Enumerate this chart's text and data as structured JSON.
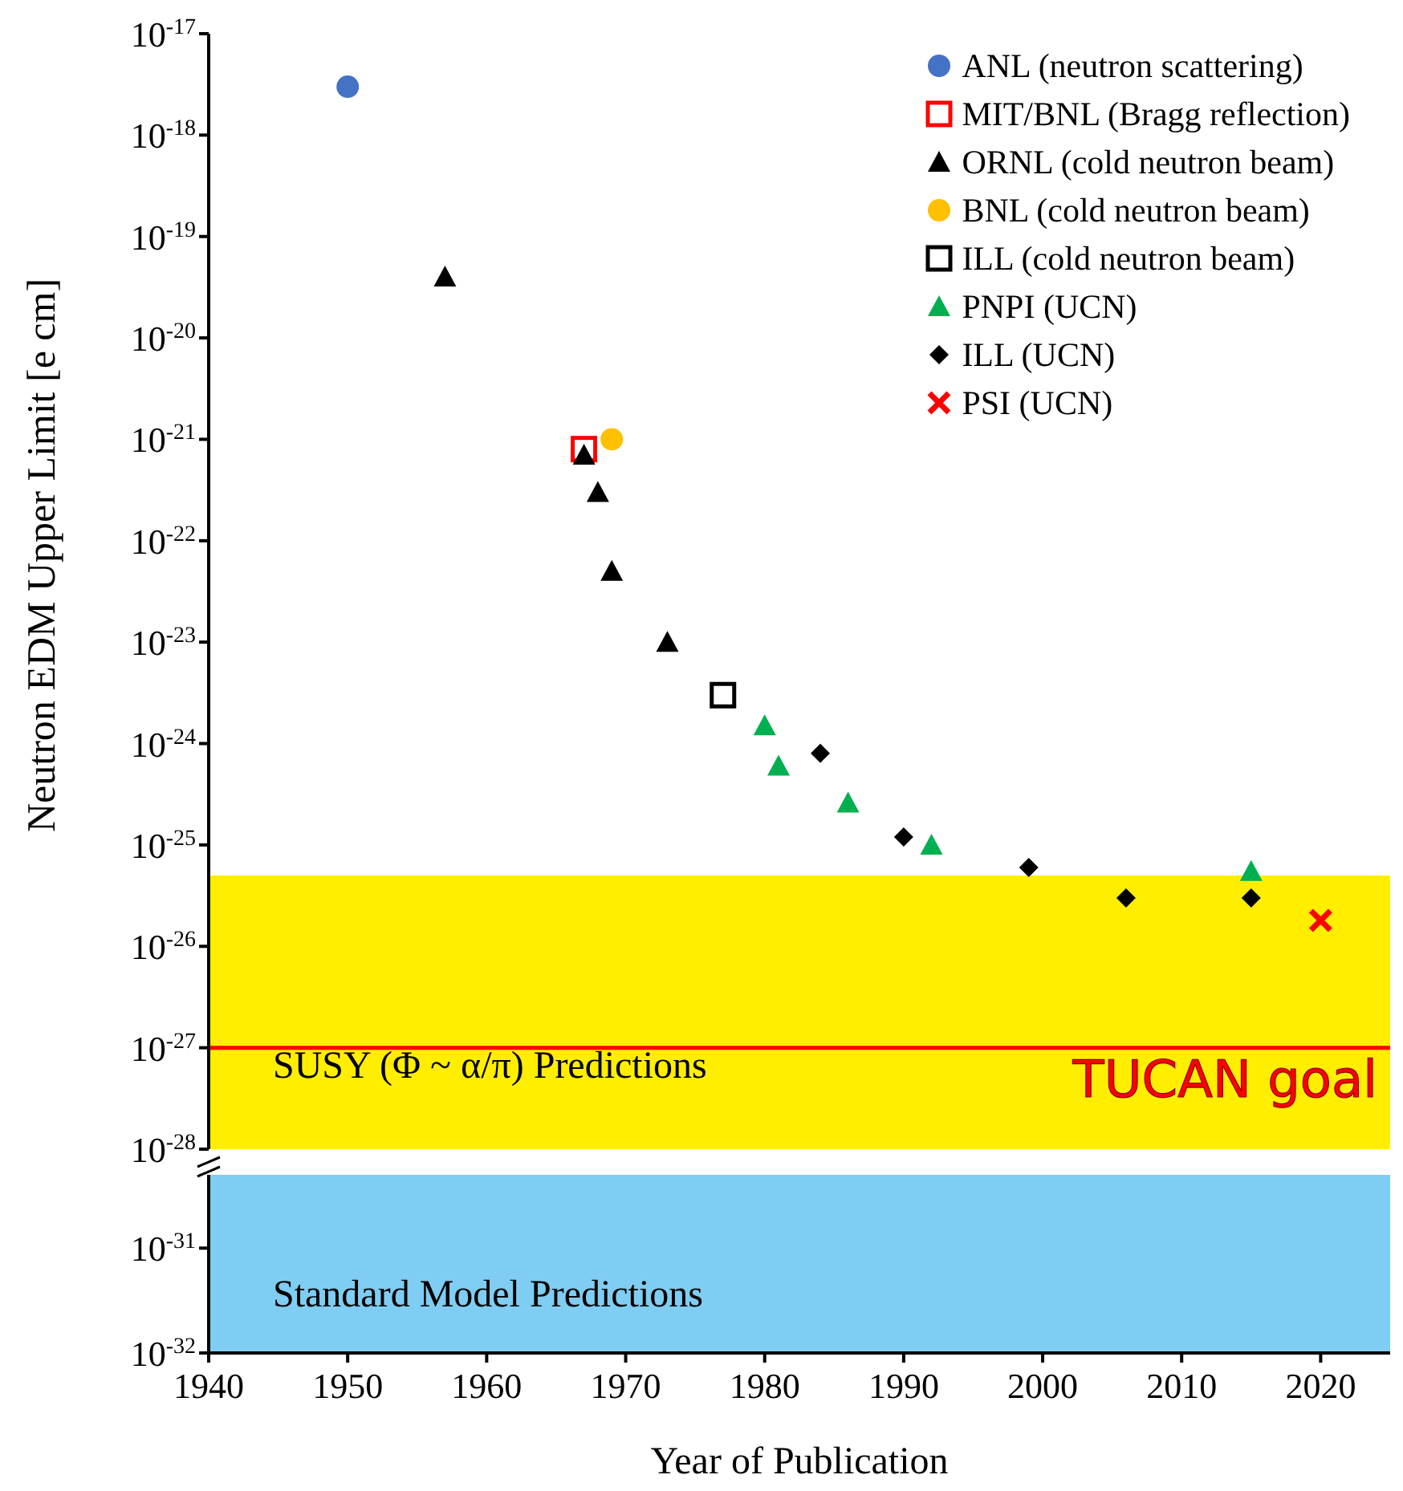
{
  "chart_data": [
    {
      "type": "scatter",
      "ylabel": "Neutron EDM Upper Limit [e cm]",
      "log": "y",
      "xlim": [
        1940,
        2025
      ],
      "xticks": [
        1940,
        1950,
        1960,
        1970,
        1980,
        1990,
        2000,
        2010,
        2020
      ],
      "tick_labels": "y",
      "ylim": [
        1e-28,
        1e-17
      ],
      "yticks": [
        {
          "value": 1e-28,
          "label": "10$^{-28}$"
        },
        {
          "value": 1e-27,
          "label": "10$^{-27}$"
        },
        {
          "value": 1e-26,
          "label": "10$^{-26}$"
        },
        {
          "value": 1e-25,
          "label": "10$^{-25}$"
        },
        {
          "value": 1e-24,
          "label": "10$^{-24}$"
        },
        {
          "value": 1e-23,
          "label": "10$^{-23}$"
        },
        {
          "value": 1e-22,
          "label": "10$^{-22}$"
        },
        {
          "value": 1e-21,
          "label": "10$^{-21}$"
        },
        {
          "value": 1e-20,
          "label": "10$^{-20}$"
        },
        {
          "value": 1e-19,
          "label": "10$^{-19}$"
        },
        {
          "value": 1e-18,
          "label": "10$^{-18}$"
        },
        {
          "value": 1e-17,
          "label": "10$^{-17}$"
        }
      ],
      "legend": "top right",
      "series": [
        {
          "name": "ANL (neutron scattering)",
          "color": "#4472c4",
          "marker": "circle",
          "x": [
            1950
          ],
          "values": [
            3e-18
          ]
        },
        {
          "name": "MIT/BNL (Bragg reflection)",
          "color": "#ff0000",
          "marker": "square",
          "x": [
            1967
          ],
          "values": [
            8e-22
          ]
        },
        {
          "name": "ORNL (cold neutron beam)",
          "color": "#000000",
          "marker": "triangle",
          "x": [
            1957,
            1967,
            1968,
            1969,
            1973
          ],
          "values": [
            4e-20,
            7e-22,
            3e-22,
            5e-23,
            1e-23
          ]
        },
        {
          "name": "BNL (cold neutron beam)",
          "color": "#ffc000",
          "marker": "circle",
          "x": [
            1969
          ],
          "values": [
            1e-21
          ]
        },
        {
          "name": "ILL (cold neutron beam)",
          "color": "#000000",
          "marker": "square",
          "x": [
            1977
          ],
          "values": [
            3e-24
          ]
        },
        {
          "name": "PNPI (UCN)",
          "color": "#00b050",
          "marker": "triangle",
          "x": [
            1980,
            1981,
            1986,
            1992,
            2015
          ],
          "values": [
            1.5e-24,
            6e-25,
            2.6e-25,
            1e-25,
            5.5e-26
          ]
        },
        {
          "name": "ILL (UCN)",
          "color": "#000000",
          "marker": "diamond",
          "x": [
            1984,
            1990,
            1999,
            2006,
            2015
          ],
          "values": [
            8e-25,
            1.2e-25,
            6e-26,
            3e-26,
            3e-26
          ]
        },
        {
          "name": "PSI (UCN)",
          "color": "#ff0000",
          "marker": "cross",
          "x": [
            2020
          ],
          "values": [
            1.8e-26
          ]
        }
      ],
      "bands": [
        {
          "axis": "y",
          "from": 1e-28,
          "to": 5e-26,
          "label": "SUSY (Φ ~ α/π) Predictions",
          "color": "#ffee00"
        }
      ],
      "ref_lines": [
        {
          "axis": "y",
          "value": 1e-27,
          "label": "TUCAN goal",
          "color": "#ff0000"
        }
      ]
    },
    {
      "type": "scatter",
      "xlabel": "Year of Publication",
      "log": "y",
      "xlim": [
        1940,
        2025
      ],
      "xticks": [
        1940,
        1950,
        1960,
        1970,
        1980,
        1990,
        2000,
        2010,
        2020
      ],
      "ylim": [
        1e-32,
        5e-31
      ],
      "yticks": [
        {
          "value": 1e-32,
          "label": "10$^{-32}$"
        },
        {
          "value": 1e-31,
          "label": "10$^{-31}$"
        }
      ],
      "bands": [
        {
          "axis": "y",
          "from": 1e-32,
          "to": 5e-31,
          "label": "Standard Model Predictions",
          "color": "#7fcdf2"
        }
      ]
    }
  ]
}
